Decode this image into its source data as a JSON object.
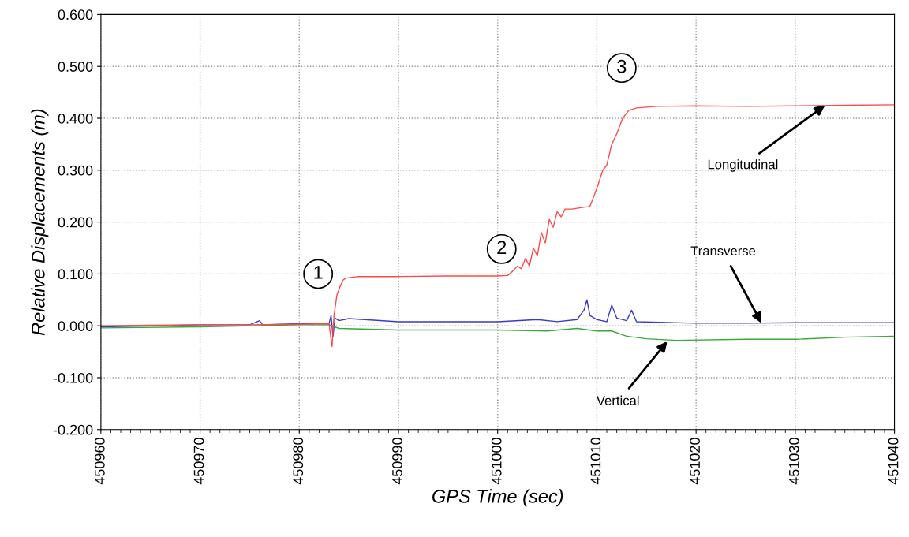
{
  "chart_data": {
    "type": "line",
    "xlabel": "GPS Time (sec)",
    "ylabel": "Relative Displacements (m)",
    "xlim": [
      450960,
      451040
    ],
    "xticks": [
      450960,
      450970,
      450980,
      450990,
      451000,
      451010,
      451020,
      451030,
      451040
    ],
    "ylim": [
      -0.2,
      0.6
    ],
    "yticks": [
      {
        "value": -0.2,
        "label": "-0.200"
      },
      {
        "value": -0.1,
        "label": "-0.100"
      },
      {
        "value": 0,
        "label": "0.000"
      },
      {
        "value": 0.1,
        "label": "0.100"
      },
      {
        "value": 0.2,
        "label": "0.200"
      },
      {
        "value": 0.3,
        "label": "0.300"
      },
      {
        "value": 0.4,
        "label": "0.400"
      },
      {
        "value": 0.5,
        "label": "0.500"
      },
      {
        "value": 0.6,
        "label": "0.600"
      }
    ],
    "grid": true,
    "legend": false,
    "marker": "none",
    "line_style": "solid",
    "series": [
      {
        "color": "#3a3ac8",
        "x": [
          450960,
          450965,
          450970,
          450975,
          450976,
          450976.3,
          450980,
          450983,
          450983.2,
          450983.4,
          450983.6,
          450984,
          450985,
          450990,
          450995,
          451000,
          451004,
          451006,
          451008,
          451008.7,
          451009,
          451009.3,
          451010,
          451011,
          451011.5,
          451012,
          451013,
          451013.5,
          451014,
          451020,
          451025,
          451030,
          451035,
          451040
        ],
        "values": [
          -0.002,
          0.0,
          0.002,
          0.002,
          0.01,
          0.002,
          0.004,
          0.004,
          0.02,
          -0.02,
          0.015,
          0.01,
          0.014,
          0.008,
          0.008,
          0.008,
          0.012,
          0.008,
          0.012,
          0.03,
          0.05,
          0.02,
          0.012,
          0.008,
          0.04,
          0.015,
          0.01,
          0.03,
          0.008,
          0.005,
          0.005,
          0.006,
          0.006,
          0.006
        ]
      },
      {
        "color": "#3aa83a",
        "x": [
          450960,
          450970,
          450980,
          450983,
          450984,
          450990,
          451000,
          451005,
          451008,
          451010,
          451011.5,
          451013,
          451015,
          451018,
          451025,
          451030,
          451035,
          451040
        ],
        "values": [
          -0.004,
          -0.002,
          0.002,
          0.002,
          -0.005,
          -0.008,
          -0.008,
          -0.01,
          -0.005,
          -0.01,
          -0.01,
          -0.02,
          -0.025,
          -0.028,
          -0.026,
          -0.026,
          -0.022,
          -0.02
        ]
      },
      {
        "color": "#ff4a4a",
        "x": [
          450960,
          450965,
          450970,
          450975,
          450980,
          450983,
          450983.3,
          450983.5,
          450983.8,
          450984.1,
          450984.4,
          450984.7,
          450986,
          450990,
          450995,
          451000,
          451001,
          451001.5,
          451002,
          451002.4,
          451002.8,
          451003.2,
          451003.6,
          451004,
          451004.4,
          451004.8,
          451005.2,
          451005.6,
          451006,
          451006.4,
          451006.8,
          451007.5,
          451008.5,
          451009.3,
          451010,
          451010.6,
          451011,
          451011.5,
          451012,
          451012.6,
          451013.2,
          451014,
          451016,
          451020,
          451025,
          451030,
          451035,
          451040
        ],
        "values": [
          0.0,
          0.001,
          0.002,
          0.002,
          0.003,
          0.004,
          -0.04,
          0.02,
          0.06,
          0.075,
          0.088,
          0.092,
          0.095,
          0.095,
          0.096,
          0.096,
          0.097,
          0.105,
          0.115,
          0.11,
          0.13,
          0.115,
          0.15,
          0.135,
          0.18,
          0.16,
          0.205,
          0.19,
          0.22,
          0.21,
          0.225,
          0.225,
          0.228,
          0.23,
          0.265,
          0.3,
          0.31,
          0.35,
          0.37,
          0.4,
          0.415,
          0.42,
          0.423,
          0.424,
          0.423,
          0.424,
          0.425,
          0.426
        ]
      }
    ],
    "annotations": [
      {
        "text": "1",
        "x": 450981.9,
        "y": 0.1
      },
      {
        "text": "2",
        "x": 451000.4,
        "y": 0.148
      },
      {
        "text": "3",
        "x": 451012.5,
        "y": 0.497
      },
      {
        "text": "Longitudinal",
        "x": 451033,
        "y": 0.425
      },
      {
        "text": "Transverse",
        "x": 451026.6,
        "y": 0.005
      },
      {
        "text": "Vertical",
        "x": 451017.1,
        "y": -0.03
      }
    ]
  }
}
